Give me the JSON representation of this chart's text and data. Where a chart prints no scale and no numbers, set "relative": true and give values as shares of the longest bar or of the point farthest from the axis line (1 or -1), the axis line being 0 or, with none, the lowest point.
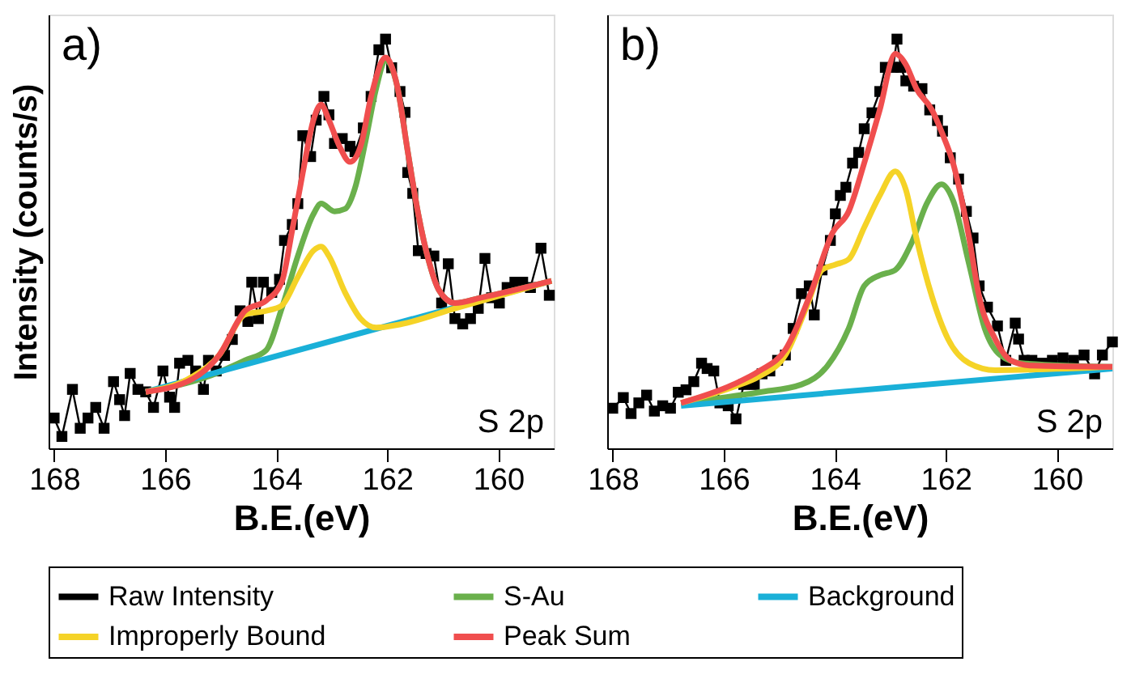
{
  "chart_data": [
    {
      "type": "line",
      "relative": true,
      "xlabel": "B.E.(eV)",
      "ylabel": "Intensity (counts/s)",
      "xlim": [
        168.1,
        159
      ],
      "xticks": [
        168,
        166,
        164,
        162,
        160
      ],
      "grid": false,
      "legend": "bottom",
      "line_style": "solid",
      "annotations": [
        "a)",
        "S 2p"
      ],
      "series": [
        {
          "name": "Raw Intensity",
          "color": "#000000",
          "marker": "square",
          "x": [
            168.0,
            167.86,
            167.67,
            167.53,
            167.39,
            167.25,
            167.1,
            166.93,
            166.82,
            166.73,
            166.63,
            166.49,
            166.35,
            166.21,
            166.04,
            165.92,
            165.83,
            165.74,
            165.59,
            165.45,
            165.31,
            165.22,
            165.08,
            164.93,
            164.79,
            164.65,
            164.51,
            164.44,
            164.32,
            164.23,
            164.08,
            163.94,
            163.85,
            163.71,
            163.61,
            163.52,
            163.38,
            163.28,
            163.14,
            163.05,
            162.95,
            162.81,
            162.67,
            162.58,
            162.43,
            162.29,
            162.15,
            162.03,
            161.92,
            161.77,
            161.68,
            161.63,
            161.54,
            161.44,
            161.3,
            161.16,
            161.02,
            160.9,
            160.78,
            160.64,
            160.5,
            160.36,
            160.24,
            160.12,
            159.98,
            159.84,
            159.7,
            159.56,
            159.42,
            159.23,
            159.08
          ],
          "values": [
            0.074,
            0.029,
            0.144,
            0.049,
            0.074,
            0.1,
            0.049,
            0.163,
            0.119,
            0.08,
            0.183,
            0.144,
            0.138,
            0.1,
            0.189,
            0.125,
            0.1,
            0.208,
            0.215,
            0.189,
            0.144,
            0.215,
            0.189,
            0.227,
            0.266,
            0.336,
            0.31,
            0.406,
            0.317,
            0.406,
            0.381,
            0.413,
            0.508,
            0.547,
            0.598,
            0.764,
            0.713,
            0.802,
            0.86,
            0.815,
            0.745,
            0.757,
            0.738,
            0.725,
            0.783,
            0.86,
            0.974,
            1.0,
            0.93,
            0.872,
            0.821,
            0.674,
            0.623,
            0.483,
            0.476,
            0.47,
            0.355,
            0.451,
            0.317,
            0.304,
            0.317,
            0.342,
            0.464,
            0.368,
            0.355,
            0.393,
            0.406,
            0.406,
            0.393,
            0.489,
            0.374
          ]
        },
        {
          "name": "S-Au",
          "color": "#6ab04c",
          "marker": "none",
          "x": [
            166.35,
            165.22,
            164.56,
            164.18,
            163.9,
            163.61,
            163.33,
            163.19,
            162.95,
            162.76,
            162.58,
            162.39,
            162.2,
            162.03,
            161.82,
            161.63,
            161.44,
            161.25,
            161.07,
            160.78,
            160.31,
            159.04
          ],
          "values": [
            0.138,
            0.176,
            0.215,
            0.24,
            0.342,
            0.47,
            0.572,
            0.598,
            0.579,
            0.585,
            0.636,
            0.751,
            0.879,
            0.949,
            0.885,
            0.725,
            0.572,
            0.457,
            0.387,
            0.355,
            0.368,
            0.409
          ]
        },
        {
          "name": "Background",
          "color": "#1ab0d8",
          "marker": "none",
          "x": [
            166.35,
            159.04
          ],
          "values": [
            0.138,
            0.409
          ]
        },
        {
          "name": "Improperly Bound",
          "color": "#f5d327",
          "marker": "none",
          "x": [
            166.35,
            165.5,
            165.03,
            164.56,
            164.18,
            163.9,
            163.61,
            163.33,
            163.19,
            163.05,
            162.76,
            162.48,
            162.2,
            161.73,
            160.78,
            159.04
          ],
          "values": [
            0.138,
            0.176,
            0.227,
            0.327,
            0.336,
            0.349,
            0.419,
            0.483,
            0.493,
            0.47,
            0.381,
            0.317,
            0.295,
            0.304,
            0.342,
            0.409
          ]
        },
        {
          "name": "Peak Sum",
          "color": "#f04e4e",
          "marker": "none",
          "x": [
            166.35,
            165.5,
            165.03,
            164.56,
            164.18,
            163.9,
            163.71,
            163.52,
            163.33,
            163.19,
            163.05,
            162.86,
            162.67,
            162.48,
            162.29,
            162.03,
            161.82,
            161.63,
            161.44,
            161.25,
            161.07,
            160.78,
            160.31,
            159.04
          ],
          "values": [
            0.138,
            0.17,
            0.227,
            0.336,
            0.361,
            0.406,
            0.534,
            0.674,
            0.802,
            0.84,
            0.802,
            0.738,
            0.7,
            0.738,
            0.86,
            0.955,
            0.885,
            0.725,
            0.572,
            0.457,
            0.387,
            0.355,
            0.368,
            0.409
          ]
        }
      ]
    },
    {
      "type": "line",
      "relative": true,
      "xlabel": "B.E.(eV)",
      "xlim": [
        168.1,
        159
      ],
      "xticks": [
        168,
        166,
        164,
        162,
        160
      ],
      "grid": false,
      "line_style": "solid",
      "annotations": [
        "b)",
        "S 2p"
      ],
      "series": [
        {
          "color": "#000000",
          "marker": "square",
          "x": [
            168.0,
            167.81,
            167.67,
            167.53,
            167.39,
            167.25,
            167.1,
            166.96,
            166.82,
            166.68,
            166.54,
            166.4,
            166.3,
            166.18,
            166.07,
            165.92,
            165.78,
            165.64,
            165.45,
            165.31,
            165.17,
            165.03,
            164.89,
            164.75,
            164.6,
            164.46,
            164.37,
            164.23,
            164.08,
            163.99,
            163.9,
            163.8,
            163.68,
            163.57,
            163.47,
            163.33,
            163.19,
            163.09,
            162.95,
            162.88,
            162.81,
            162.72,
            162.58,
            162.43,
            162.29,
            162.15,
            162.06,
            161.92,
            161.77,
            161.63,
            161.51,
            161.4,
            161.25,
            161.07,
            160.92,
            160.75,
            160.69,
            160.59,
            160.45,
            160.26,
            160.08,
            159.89,
            159.7,
            159.51,
            159.32,
            159.18,
            159.0
          ],
          "values": [
            0.098,
            0.124,
            0.085,
            0.111,
            0.13,
            0.091,
            0.104,
            0.098,
            0.137,
            0.143,
            0.163,
            0.208,
            0.195,
            0.189,
            0.111,
            0.104,
            0.072,
            0.156,
            0.156,
            0.182,
            0.189,
            0.215,
            0.228,
            0.293,
            0.378,
            0.397,
            0.326,
            0.436,
            0.508,
            0.573,
            0.618,
            0.638,
            0.697,
            0.723,
            0.781,
            0.82,
            0.872,
            0.931,
            0.931,
            1.0,
            0.931,
            0.898,
            0.885,
            0.879,
            0.827,
            0.801,
            0.775,
            0.71,
            0.658,
            0.579,
            0.514,
            0.397,
            0.345,
            0.299,
            0.215,
            0.306,
            0.267,
            0.215,
            0.215,
            0.208,
            0.215,
            0.221,
            0.215,
            0.228,
            0.182,
            0.228,
            0.26
          ]
        },
        {
          "color": "#6ab04c",
          "marker": "none",
          "x": [
            166.77,
            165.36,
            164.6,
            164.13,
            163.75,
            163.47,
            163.19,
            162.91,
            162.62,
            162.34,
            162.08,
            161.87,
            161.58,
            161.3,
            161.02,
            160.64,
            159.0
          ],
          "values": [
            0.111,
            0.137,
            0.156,
            0.202,
            0.293,
            0.397,
            0.423,
            0.436,
            0.501,
            0.599,
            0.645,
            0.606,
            0.449,
            0.293,
            0.228,
            0.208,
            0.199
          ]
        },
        {
          "color": "#1ab0d8",
          "marker": "none",
          "x": [
            166.77,
            159.0
          ],
          "values": [
            0.104,
            0.195
          ]
        },
        {
          "color": "#f5d327",
          "marker": "none",
          "x": [
            166.77,
            165.83,
            165.36,
            164.89,
            164.51,
            164.23,
            163.99,
            163.75,
            163.47,
            163.19,
            162.91,
            162.72,
            162.53,
            162.25,
            161.96,
            161.58,
            161.11,
            159.0
          ],
          "values": [
            0.111,
            0.15,
            0.176,
            0.228,
            0.345,
            0.436,
            0.449,
            0.462,
            0.54,
            0.618,
            0.677,
            0.632,
            0.514,
            0.371,
            0.267,
            0.208,
            0.191,
            0.199
          ]
        },
        {
          "color": "#f04e4e",
          "marker": "none",
          "x": [
            166.77,
            165.83,
            165.36,
            164.89,
            164.42,
            164.04,
            163.75,
            163.47,
            163.19,
            162.91,
            162.72,
            162.53,
            162.25,
            162.06,
            161.87,
            161.58,
            161.4,
            161.11,
            160.83,
            160.45,
            159.0
          ],
          "values": [
            0.111,
            0.156,
            0.189,
            0.241,
            0.384,
            0.527,
            0.579,
            0.697,
            0.827,
            0.964,
            0.938,
            0.879,
            0.827,
            0.768,
            0.697,
            0.514,
            0.371,
            0.267,
            0.215,
            0.202,
            0.199
          ]
        }
      ]
    }
  ]
}
